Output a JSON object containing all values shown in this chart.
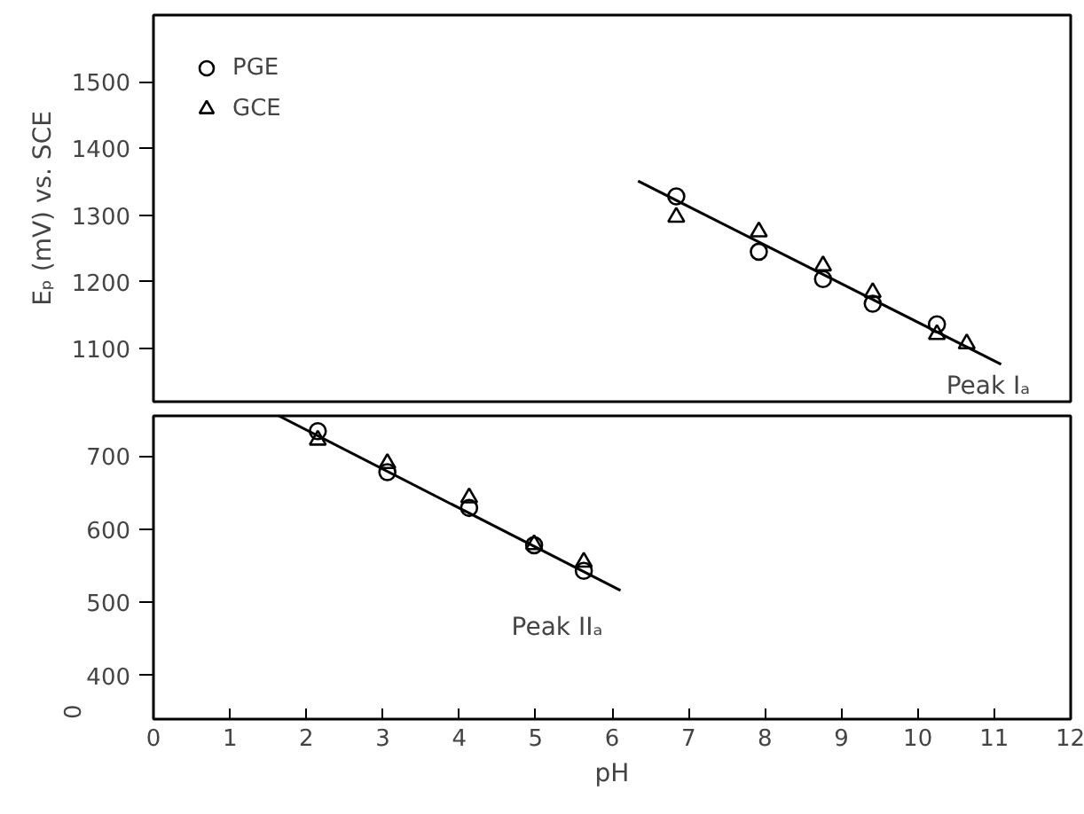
{
  "chart_data": [
    {
      "type": "scatter",
      "ylabel": "Eₚ (mV) vs. SCE",
      "xlim": [
        0,
        12
      ],
      "ylim": [
        1020,
        1600
      ],
      "yticks": [
        1100,
        1200,
        1300,
        1400,
        1500
      ],
      "tick_labels": "y",
      "legend": "top left",
      "annotations": [
        "Peak Iₐ"
      ],
      "series": [
        {
          "name": "PGE",
          "marker": "circle",
          "color": "#000000",
          "x": [
            6.84,
            7.92,
            8.76,
            9.41,
            10.25
          ],
          "values": [
            1328,
            1245,
            1204,
            1167,
            1136
          ]
        },
        {
          "name": "GCE",
          "marker": "triangle",
          "color": "#000000",
          "x": [
            6.84,
            7.92,
            8.76,
            9.41,
            10.25,
            10.64
          ],
          "values": [
            1297,
            1275,
            1224,
            1184,
            1121,
            1107
          ]
        },
        {
          "type": "line",
          "color": "#000000",
          "x": [
            6.34,
            11.09
          ],
          "values": [
            1351,
            1076
          ]
        }
      ]
    },
    {
      "type": "scatter",
      "xlabel": "pH",
      "xlim": [
        0,
        12
      ],
      "xticks": [
        0,
        1,
        2,
        3,
        4,
        5,
        6,
        7,
        8,
        9,
        10,
        11,
        12
      ],
      "ylim": [
        340,
        755
      ],
      "yticks": [
        400,
        500,
        600,
        700
      ],
      "annotations": [
        "Peak IIₐ",
        "0"
      ],
      "series": [
        {
          "marker": "circle",
          "color": "#000000",
          "x": [
            2.15,
            3.06,
            4.13,
            4.98,
            5.63
          ],
          "values": [
            734,
            678,
            629,
            578,
            543
          ]
        },
        {
          "marker": "triangle",
          "color": "#000000",
          "x": [
            2.15,
            3.06,
            4.13,
            4.98,
            5.63
          ],
          "values": [
            722,
            690,
            643,
            579,
            555
          ]
        },
        {
          "type": "line",
          "color": "#000000",
          "x": [
            1.64,
            6.11
          ],
          "values": [
            755,
            516
          ]
        }
      ]
    }
  ]
}
